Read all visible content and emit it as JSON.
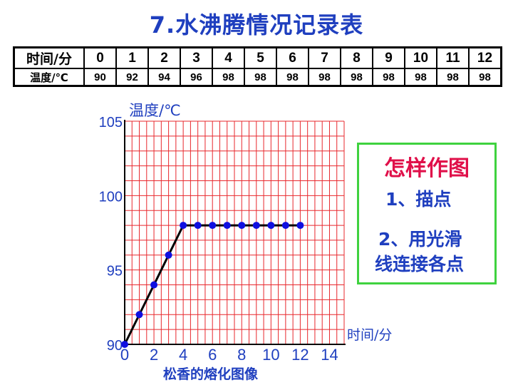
{
  "title": "7.水沸腾情况记录表",
  "table": {
    "time_header": "时间/分",
    "temp_header": "温度/℃",
    "times": [
      "0",
      "1",
      "2",
      "3",
      "4",
      "5",
      "6",
      "7",
      "8",
      "9",
      "10",
      "11",
      "12"
    ],
    "temps": [
      "90",
      "92",
      "94",
      "96",
      "98",
      "98",
      "98",
      "98",
      "98",
      "98",
      "98",
      "98",
      "98"
    ]
  },
  "chart_data": {
    "type": "line",
    "xlabel": "时间/分",
    "ylabel": "温度/℃",
    "xlim": [
      0,
      15
    ],
    "ylim": [
      90,
      105
    ],
    "xticks": [
      0,
      2,
      4,
      6,
      8,
      10,
      12,
      14
    ],
    "yticks": [
      90,
      95,
      100,
      105
    ],
    "grid": true,
    "points": {
      "x": [
        0,
        1,
        2,
        3,
        4,
        5,
        6,
        7,
        8,
        9,
        10,
        11,
        12
      ],
      "y": [
        90,
        92,
        94,
        96,
        98,
        98,
        98,
        98,
        98,
        98,
        98,
        98,
        98
      ]
    },
    "line": {
      "x": [
        0,
        4,
        12
      ],
      "y": [
        90,
        98,
        98
      ]
    },
    "colors": {
      "grid": "#e8282d",
      "points": "#1010e0",
      "line": "#000000",
      "text": "#1f3fbf"
    }
  },
  "caption": "松香的熔化图像",
  "howto": {
    "title": "怎样作图",
    "step1": "1、描点",
    "step2_line1": "2、用光滑",
    "step2_line2": "线连接各点"
  }
}
